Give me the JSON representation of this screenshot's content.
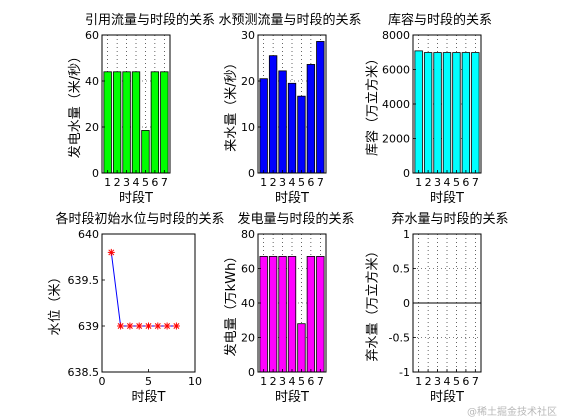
{
  "watermark": "@稀土掘金技术社区",
  "chart_data": [
    {
      "type": "bar",
      "title": "引用流量与时段的关系",
      "xlabel": "时段T",
      "ylabel": "发电水量（米/秒）",
      "categories": [
        "1",
        "2",
        "3",
        "4",
        "5",
        "6",
        "7"
      ],
      "values": [
        44,
        44,
        44,
        44,
        18.5,
        44,
        44
      ],
      "ylim": [
        0,
        60
      ],
      "yticks": [
        "0",
        "20",
        "40",
        "60"
      ],
      "color": "#00ff00",
      "grid": true
    },
    {
      "type": "bar",
      "title": "水预测流量与时段的关系",
      "xlabel": "时段T",
      "ylabel": "来水量（米/秒）",
      "categories": [
        "1",
        "2",
        "3",
        "4",
        "5",
        "6",
        "7"
      ],
      "values": [
        20.5,
        25.5,
        22.2,
        19.5,
        16.7,
        23.6,
        28.6
      ],
      "ylim": [
        0,
        30
      ],
      "yticks": [
        "0",
        "10",
        "20",
        "30"
      ],
      "color": "#0000ff",
      "grid": true
    },
    {
      "type": "bar",
      "title": "库容与时段的关系",
      "xlabel": "时段T",
      "ylabel": "库容（万立方米）",
      "categories": [
        "1",
        "2",
        "3",
        "4",
        "5",
        "6",
        "7"
      ],
      "values": [
        7080,
        6980,
        6980,
        6980,
        6980,
        6980,
        6980
      ],
      "ylim": [
        0,
        8000
      ],
      "yticks": [
        "0",
        "2000",
        "4000",
        "6000",
        "8000"
      ],
      "color": "#00ffff",
      "grid": true
    },
    {
      "type": "line",
      "title": "各时段初始水位与时段的关系",
      "xlabel": "时段T",
      "ylabel": "水位（米）",
      "x": [
        1,
        2,
        3,
        4,
        5,
        6,
        7,
        8
      ],
      "values": [
        639.8,
        639,
        639,
        639,
        639,
        639,
        639,
        639
      ],
      "xlim": [
        0,
        10
      ],
      "xticks": [
        "0",
        "5",
        "10"
      ],
      "ylim": [
        638.5,
        640
      ],
      "yticks": [
        "638.5",
        "639",
        "639.5",
        "640"
      ],
      "line_color": "#0000ff",
      "marker_color": "#ff0000",
      "marker": "star",
      "grid": false
    },
    {
      "type": "bar",
      "title": "发电量与时段的关系",
      "xlabel": "时段T",
      "ylabel": "发电量（万kWh）",
      "categories": [
        "1",
        "2",
        "3",
        "4",
        "5",
        "6",
        "7"
      ],
      "values": [
        67,
        67,
        67,
        67,
        28,
        67,
        67
      ],
      "ylim": [
        0,
        80
      ],
      "yticks": [
        "0",
        "20",
        "40",
        "60",
        "80"
      ],
      "color": "#ff00ff",
      "grid": true
    },
    {
      "type": "bar",
      "title": "弃水量与时段的关系",
      "xlabel": "时段T",
      "ylabel": "弃水量（万立方米）",
      "categories": [
        "1",
        "2",
        "3",
        "4",
        "5",
        "6",
        "7"
      ],
      "values": [
        0,
        0,
        0,
        0,
        0,
        0,
        0
      ],
      "ylim": [
        -1,
        1
      ],
      "yticks": [
        "-1",
        "-0.5",
        "0",
        "0.5",
        "1"
      ],
      "color": "#ffffff",
      "grid": true
    }
  ]
}
